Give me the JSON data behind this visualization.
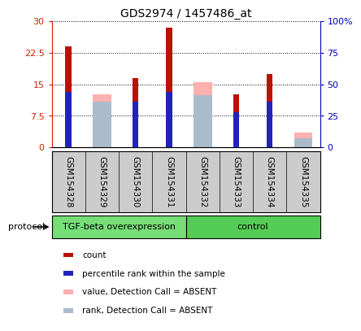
{
  "title": "GDS2974 / 1457486_at",
  "samples": [
    "GSM154328",
    "GSM154329",
    "GSM154330",
    "GSM154331",
    "GSM154332",
    "GSM154333",
    "GSM154334",
    "GSM154335"
  ],
  "red_bars": [
    24.0,
    0,
    16.5,
    28.5,
    0,
    12.5,
    17.5,
    2.0
  ],
  "pink_bars": [
    0,
    12.5,
    0,
    0,
    15.5,
    0,
    0,
    3.5
  ],
  "blue_bars": [
    44.0,
    0,
    36.0,
    44.0,
    0,
    28.0,
    36.0,
    0
  ],
  "lightblue_bars": [
    0,
    36.0,
    0,
    0,
    41.0,
    0,
    0,
    7.0
  ],
  "groups": [
    {
      "label": "TGF-beta overexpression",
      "start": 0,
      "end": 4,
      "color": "#77DD77"
    },
    {
      "label": "control",
      "start": 4,
      "end": 8,
      "color": "#55CC55"
    }
  ],
  "ylim_left": [
    0,
    30
  ],
  "ylim_right": [
    0,
    100
  ],
  "yticks_left": [
    0,
    7.5,
    15,
    22.5,
    30
  ],
  "ytick_labels_left": [
    "0",
    "7.5",
    "15",
    "22.5",
    "30"
  ],
  "yticks_right": [
    0,
    25,
    50,
    75,
    100
  ],
  "ytick_labels_right": [
    "0",
    "25",
    "50",
    "75",
    "100%"
  ],
  "red_color": "#BB1100",
  "pink_color": "#FFB0B0",
  "blue_color": "#2222BB",
  "lightblue_color": "#AABBCC",
  "protocol_label": "protocol",
  "left_axis_color": "#CC2200",
  "right_axis_color": "#0000BB",
  "label_bg_color": "#CCCCCC",
  "green1": "#77DD77",
  "green2": "#55CC55"
}
